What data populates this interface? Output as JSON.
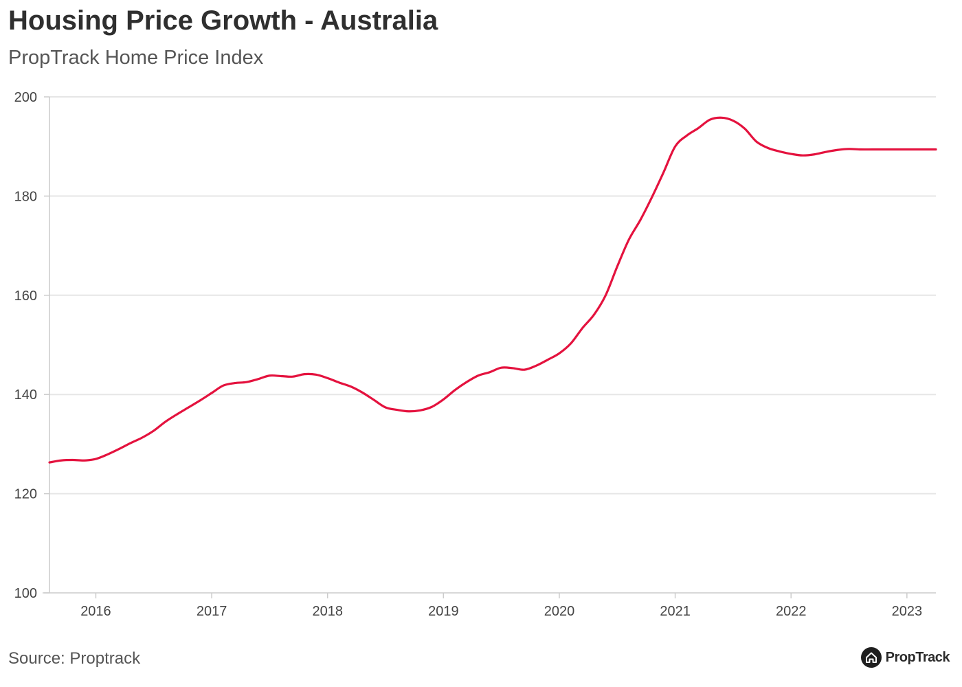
{
  "header": {
    "title": "Housing Price Growth - Australia",
    "subtitle": "PropTrack Home Price Index"
  },
  "footer": {
    "source": "Source: Proptrack",
    "logo_text": "PropTrack",
    "logo_icon": "house-icon"
  },
  "colors": {
    "line": "#e4123e",
    "grid": "#e6e6e6",
    "axis": "#cccccc"
  },
  "chart_data": {
    "type": "line",
    "title": "Housing Price Growth - Australia",
    "subtitle": "PropTrack Home Price Index",
    "xlabel": "",
    "ylabel": "",
    "ylim": [
      100,
      200
    ],
    "yticks": [
      100,
      120,
      140,
      160,
      180,
      200
    ],
    "xlim": [
      2015.6,
      2023.25
    ],
    "xticks": [
      2016,
      2017,
      2018,
      2019,
      2020,
      2021,
      2022,
      2023
    ],
    "xtick_labels": [
      "2016",
      "2017",
      "2018",
      "2019",
      "2020",
      "2021",
      "2022",
      "2023"
    ],
    "grid": true,
    "legend": "none",
    "series": [
      {
        "x": [
          2015.6,
          2015.7,
          2015.8,
          2015.9,
          2016.0,
          2016.1,
          2016.2,
          2016.3,
          2016.4,
          2016.5,
          2016.6,
          2016.7,
          2016.8,
          2016.9,
          2017.0,
          2017.1,
          2017.2,
          2017.3,
          2017.4,
          2017.5,
          2017.6,
          2017.7,
          2017.8,
          2017.9,
          2018.0,
          2018.1,
          2018.2,
          2018.3,
          2018.4,
          2018.5,
          2018.6,
          2018.7,
          2018.8,
          2018.9,
          2019.0,
          2019.1,
          2019.2,
          2019.3,
          2019.4,
          2019.5,
          2019.6,
          2019.7,
          2019.8,
          2019.9,
          2020.0,
          2020.1,
          2020.2,
          2020.3,
          2020.4,
          2020.5,
          2020.6,
          2020.7,
          2020.8,
          2020.9,
          2021.0,
          2021.1,
          2021.2,
          2021.3,
          2021.4,
          2021.5,
          2021.6,
          2021.7,
          2021.8,
          2021.9,
          2022.0,
          2022.1,
          2022.2,
          2022.3,
          2022.4,
          2022.5,
          2022.6,
          2022.7,
          2022.8,
          2022.9,
          2023.0,
          2023.1,
          2023.2,
          2023.25
        ],
        "y": [
          126.3,
          126.7,
          126.8,
          126.7,
          127.0,
          127.9,
          129.0,
          130.2,
          131.3,
          132.7,
          134.5,
          136.0,
          137.4,
          138.8,
          140.3,
          141.8,
          142.3,
          142.5,
          143.1,
          143.8,
          143.7,
          143.6,
          144.1,
          144.0,
          143.3,
          142.4,
          141.6,
          140.4,
          138.9,
          137.4,
          136.9,
          136.6,
          136.8,
          137.5,
          139.0,
          140.9,
          142.5,
          143.8,
          144.5,
          145.4,
          145.3,
          145.0,
          145.8,
          147.0,
          148.3,
          150.3,
          153.4,
          156.1,
          160.0,
          165.8,
          171.2,
          175.2,
          179.8,
          184.8,
          190.0,
          192.2,
          193.7,
          195.4,
          195.8,
          195.2,
          193.6,
          191.0,
          189.7,
          189.0,
          188.5,
          188.2,
          188.4,
          188.9,
          189.3,
          189.5,
          189.4,
          189.4,
          189.4,
          189.4,
          189.4,
          189.4,
          189.4,
          189.4
        ]
      }
    ]
  }
}
